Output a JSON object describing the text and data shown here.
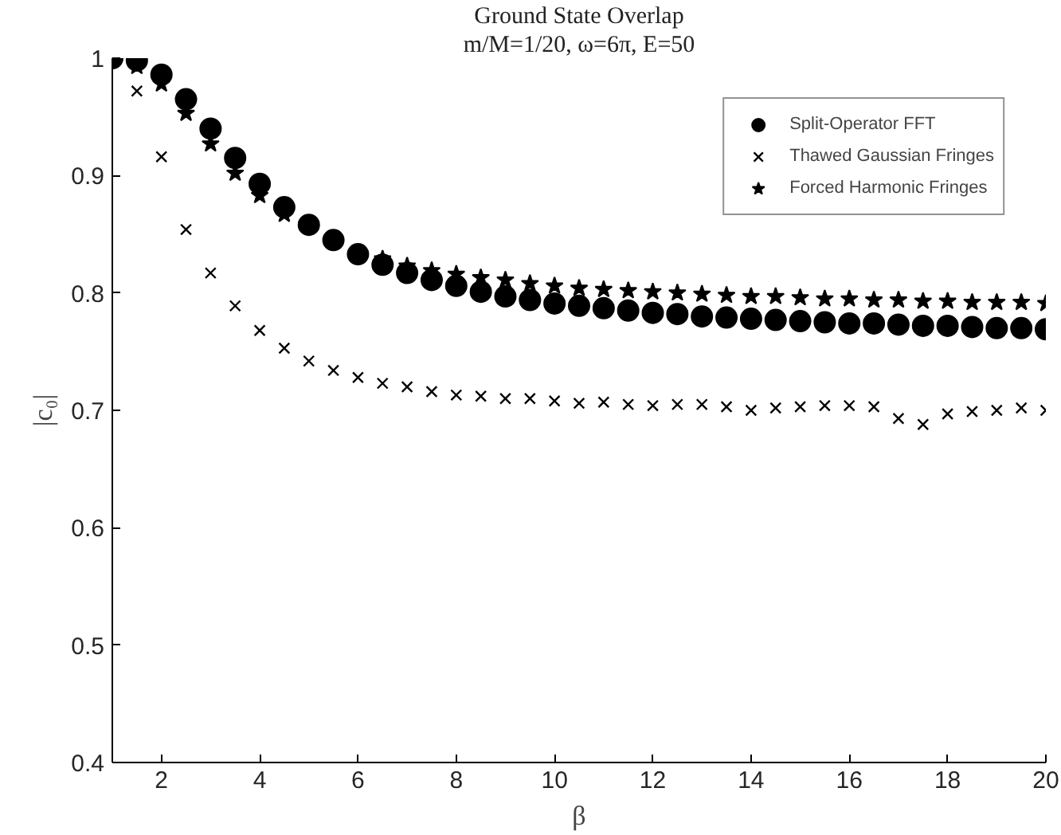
{
  "chart_data": {
    "type": "scatter",
    "title": "Ground State Overlap",
    "subtitle": "m/M=1/20, ω=6π, E=50",
    "xlabel": "β",
    "ylabel": "|c₀|",
    "x": [
      1,
      1.5,
      2,
      2.5,
      3,
      3.5,
      4,
      4.5,
      5,
      5.5,
      6,
      6.5,
      7,
      7.5,
      8,
      8.5,
      9,
      9.5,
      10,
      10.5,
      11,
      11.5,
      12,
      12.5,
      13,
      13.5,
      14,
      14.5,
      15,
      15.5,
      16,
      16.5,
      17,
      17.5,
      18,
      18.5,
      19,
      19.5,
      20
    ],
    "xlim": [
      1,
      20
    ],
    "xticks": [
      2,
      4,
      6,
      8,
      10,
      12,
      14,
      16,
      18,
      20
    ],
    "ylim": [
      0.4,
      1
    ],
    "yticks": [
      0.4,
      0.5,
      0.6,
      0.7,
      0.8,
      0.9,
      1
    ],
    "grid": false,
    "legend": "top right",
    "series": [
      {
        "name": "Split-Operator FFT",
        "color": "#000000",
        "marker": "circle",
        "values": [
          1,
          0.998,
          0.986,
          0.965,
          0.94,
          0.915,
          0.893,
          0.873,
          0.858,
          0.845,
          0.833,
          0.824,
          0.817,
          0.811,
          0.806,
          0.801,
          0.797,
          0.794,
          0.791,
          0.789,
          0.787,
          0.785,
          0.783,
          0.782,
          0.78,
          0.779,
          0.778,
          0.777,
          0.776,
          0.775,
          0.774,
          0.774,
          0.773,
          0.772,
          0.772,
          0.771,
          0.77,
          0.77,
          0.769
        ]
      },
      {
        "name": "Thawed Gaussian Fringes",
        "color": "#000000",
        "marker": "cross",
        "values": [
          null,
          0.972,
          0.916,
          0.854,
          0.817,
          0.789,
          0.768,
          0.753,
          0.742,
          0.734,
          0.728,
          0.723,
          0.72,
          0.716,
          0.713,
          0.712,
          0.71,
          0.71,
          0.708,
          0.706,
          0.707,
          0.705,
          0.704,
          0.705,
          0.705,
          0.703,
          0.7,
          0.702,
          0.703,
          0.704,
          0.704,
          0.703,
          0.693,
          0.688,
          0.697,
          0.699,
          0.7,
          0.702,
          0.7
        ]
      },
      {
        "name": "Forced Harmonic Fringes",
        "color": "#000000",
        "marker": "star",
        "values": [
          null,
          0.993,
          0.978,
          0.953,
          0.927,
          0.902,
          0.883,
          0.867,
          null,
          null,
          null,
          0.829,
          0.823,
          0.819,
          0.816,
          0.813,
          0.811,
          0.808,
          0.806,
          0.804,
          0.803,
          0.802,
          0.801,
          0.8,
          0.799,
          0.798,
          0.797,
          0.797,
          0.796,
          0.795,
          0.795,
          0.794,
          0.794,
          0.793,
          0.793,
          0.792,
          0.792,
          0.792,
          0.791
        ]
      }
    ]
  }
}
